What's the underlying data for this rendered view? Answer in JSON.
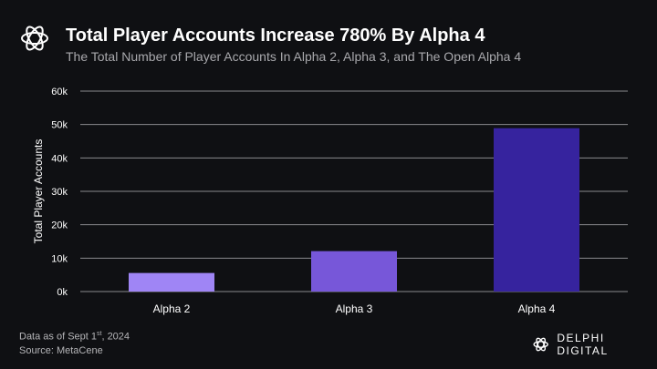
{
  "header": {
    "title": "Total Player Accounts Increase 780% By Alpha 4",
    "subtitle": "The Total Number of Player Accounts In Alpha 2, Alpha 3, and The Open Alpha 4"
  },
  "footer": {
    "date_prefix": "Data as of Sept 1",
    "date_sup": "st",
    "date_suffix": ", 2024",
    "source": "Source: MetaCene"
  },
  "brand": {
    "name": "DELPHI DIGITAL",
    "logo_icon": "knot-ring-icon"
  },
  "chart_data": {
    "type": "bar",
    "title": "Total Player Accounts Increase 780% By Alpha 4",
    "xlabel": "",
    "ylabel": "Total Player Accounts",
    "categories": [
      "Alpha 2",
      "Alpha 3",
      "Alpha 4"
    ],
    "values": [
      5560,
      12100,
      48900
    ],
    "colors": [
      "#9f85f5",
      "#7757d9",
      "#36239e"
    ],
    "ylim": [
      0,
      60000
    ],
    "yticks": [
      0,
      10000,
      20000,
      30000,
      40000,
      50000,
      60000
    ],
    "ytick_labels": [
      "0k",
      "10k",
      "20k",
      "30k",
      "40k",
      "50k",
      "60k"
    ],
    "grid": true,
    "legend": "none"
  }
}
